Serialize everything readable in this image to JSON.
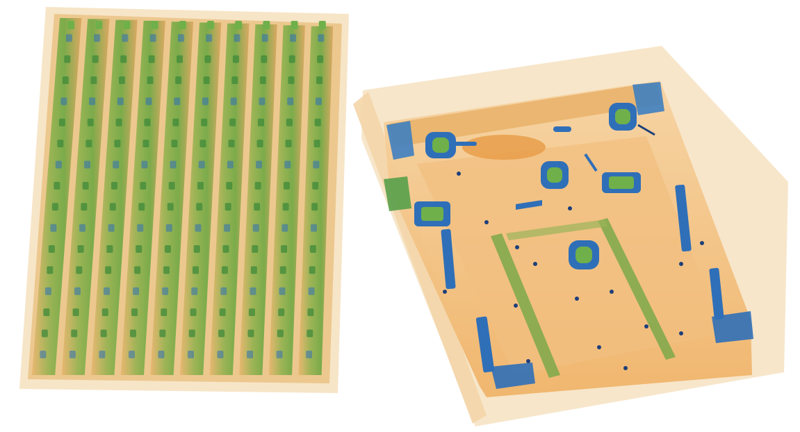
{
  "scene": {
    "description_type": "xray-baggage-scan",
    "colors": {
      "background": "#ffffff",
      "organic_light": "#f3dcb4",
      "organic_mid": "#f0b46a",
      "organic_dark": "#e08a2c",
      "inorganic_green": "#6fb04a",
      "inorganic_dark_green": "#3f8a3a",
      "metal_blue": "#2f6fb8",
      "metal_dark": "#1d3f7a"
    },
    "objects": [
      {
        "name": "stacked-panels",
        "panel_count": 10
      },
      {
        "name": "open-case",
        "latch_count": 4,
        "rail_count": 2
      }
    ]
  }
}
